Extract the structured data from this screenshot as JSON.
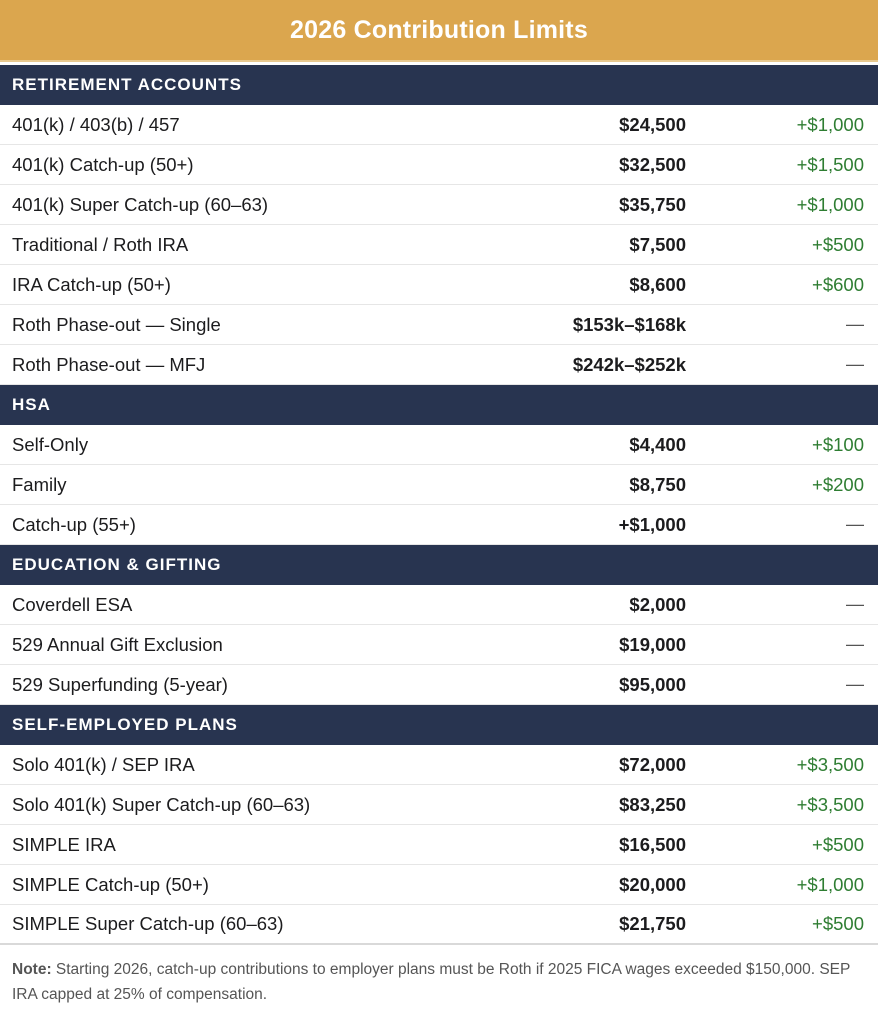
{
  "title": "2026 Contribution Limits",
  "sections": [
    {
      "heading": "RETIREMENT ACCOUNTS",
      "rows": [
        {
          "label": "401(k) / 403(b) / 457",
          "value": "$24,500",
          "change": "+$1,000"
        },
        {
          "label": "401(k) Catch-up (50+)",
          "value": "$32,500",
          "change": "+$1,500"
        },
        {
          "label": "401(k) Super Catch-up (60–63)",
          "value": "$35,750",
          "change": "+$1,000"
        },
        {
          "label": "Traditional / Roth IRA",
          "value": "$7,500",
          "change": "+$500"
        },
        {
          "label": "IRA Catch-up (50+)",
          "value": "$8,600",
          "change": "+$600"
        },
        {
          "label": "Roth Phase-out — Single",
          "value": "$153k–$168k",
          "change": "—"
        },
        {
          "label": "Roth Phase-out — MFJ",
          "value": "$242k–$252k",
          "change": "—"
        }
      ]
    },
    {
      "heading": "HSA",
      "rows": [
        {
          "label": "Self-Only",
          "value": "$4,400",
          "change": "+$100"
        },
        {
          "label": "Family",
          "value": "$8,750",
          "change": "+$200"
        },
        {
          "label": "Catch-up (55+)",
          "value": "+$1,000",
          "change": "—"
        }
      ]
    },
    {
      "heading": "EDUCATION & GIFTING",
      "rows": [
        {
          "label": "Coverdell ESA",
          "value": "$2,000",
          "change": "—"
        },
        {
          "label": "529 Annual Gift Exclusion",
          "value": "$19,000",
          "change": "—"
        },
        {
          "label": "529 Superfunding (5-year)",
          "value": "$95,000",
          "change": "—"
        }
      ]
    },
    {
      "heading": "SELF-EMPLOYED PLANS",
      "rows": [
        {
          "label": "Solo 401(k) / SEP IRA",
          "value": "$72,000",
          "change": "+$3,500"
        },
        {
          "label": "Solo 401(k) Super Catch-up (60–63)",
          "value": "$83,250",
          "change": "+$3,500"
        },
        {
          "label": "SIMPLE IRA",
          "value": "$16,500",
          "change": "+$500"
        },
        {
          "label": "SIMPLE Catch-up (50+)",
          "value": "$20,000",
          "change": "+$1,000"
        },
        {
          "label": "SIMPLE Super Catch-up (60–63)",
          "value": "$21,750",
          "change": "+$500"
        }
      ]
    }
  ],
  "note": {
    "prefix": "Note:",
    "text": " Starting 2026, catch-up contributions to employer plans must be Roth if 2025 FICA wages exceeded $150,000. SEP IRA capped at 25% of compensation."
  },
  "colors": {
    "title_bg": "#dba64e",
    "section_bg": "#283450",
    "increase_text": "#2e7d32"
  }
}
